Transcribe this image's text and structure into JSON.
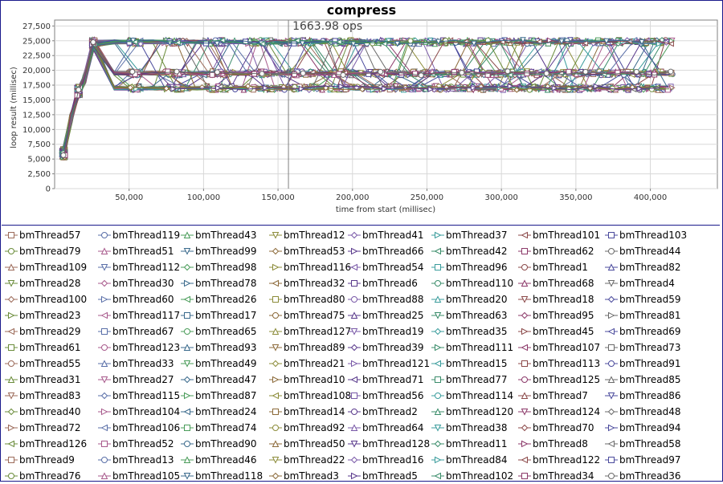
{
  "chart_data": {
    "type": "line",
    "title": "compress",
    "annotation": "1663.98 ops",
    "annotation_x": 157000,
    "xlabel": "time from start (millisec)",
    "ylabel": "loop result (millisec)",
    "xlim": [
      0,
      445000
    ],
    "ylim": [
      0,
      28500
    ],
    "x_ticks": [
      50000,
      100000,
      150000,
      200000,
      250000,
      300000,
      350000,
      400000
    ],
    "x_tick_labels": [
      "50,000",
      "100,000",
      "150,000",
      "200,000",
      "250,000",
      "300,000",
      "350,000",
      "400,000"
    ],
    "y_ticks": [
      0,
      2500,
      5000,
      7500,
      10000,
      12500,
      15000,
      17500,
      20000,
      22500,
      25000,
      27500
    ],
    "y_tick_labels": [
      "0",
      "2,500",
      "5,000",
      "7,500",
      "10,000",
      "12,500",
      "15,000",
      "17,500",
      "20,000",
      "22,500",
      "25,000",
      "27,500"
    ],
    "grid": true,
    "legend_position": "bottom",
    "legend_columns": 7,
    "start_points": [
      [
        6000,
        6000
      ],
      [
        11000,
        11800
      ],
      [
        16000,
        16500
      ],
      [
        20000,
        18500
      ],
      [
        26000,
        24500
      ]
    ],
    "levels": [
      17000,
      19500,
      24800
    ],
    "series_names": [
      "bmThread57",
      "bmThread119",
      "bmThread43",
      "bmThread12",
      "bmThread41",
      "bmThread37",
      "bmThread101",
      "bmThread103",
      "bmThread79",
      "bmThread51",
      "bmThread99",
      "bmThread53",
      "bmThread66",
      "bmThread42",
      "bmThread62",
      "bmThread44",
      "bmThread109",
      "bmThread112",
      "bmThread98",
      "bmThread116",
      "bmThread54",
      "bmThread96",
      "bmThread1",
      "bmThread82",
      "bmThread28",
      "bmThread30",
      "bmThread78",
      "bmThread32",
      "bmThread6",
      "bmThread110",
      "bmThread68",
      "bmThread4",
      "bmThread100",
      "bmThread60",
      "bmThread26",
      "bmThread80",
      "bmThread88",
      "bmThread20",
      "bmThread18",
      "bmThread59",
      "bmThread23",
      "bmThread117",
      "bmThread17",
      "bmThread75",
      "bmThread25",
      "bmThread63",
      "bmThread95",
      "bmThread81",
      "bmThread29",
      "bmThread67",
      "bmThread65",
      "bmThread127",
      "bmThread19",
      "bmThread35",
      "bmThread45",
      "bmThread69",
      "bmThread61",
      "bmThread123",
      "bmThread93",
      "bmThread89",
      "bmThread39",
      "bmThread111",
      "bmThread107",
      "bmThread73",
      "bmThread55",
      "bmThread33",
      "bmThread49",
      "bmThread21",
      "bmThread121",
      "bmThread15",
      "bmThread113",
      "bmThread91",
      "bmThread31",
      "bmThread27",
      "bmThread47",
      "bmThread10",
      "bmThread71",
      "bmThread77",
      "bmThread125",
      "bmThread85",
      "bmThread83",
      "bmThread115",
      "bmThread87",
      "bmThread108",
      "bmThread56",
      "bmThread114",
      "bmThread7",
      "bmThread86",
      "bmThread40",
      "bmThread104",
      "bmThread24",
      "bmThread14",
      "bmThread2",
      "bmThread120",
      "bmThread124",
      "bmThread48",
      "bmThread72",
      "bmThread106",
      "bmThread74",
      "bmThread92",
      "bmThread64",
      "bmThread38",
      "bmThread70",
      "bmThread94",
      "bmThread126",
      "bmThread52",
      "bmThread90",
      "bmThread50",
      "bmThread128",
      "bmThread11",
      "bmThread8",
      "bmThread58",
      "bmThread9",
      "bmThread13",
      "bmThread46",
      "bmThread22",
      "bmThread16",
      "bmThread84",
      "bmThread122",
      "bmThread97",
      "bmThread76",
      "bmThread105",
      "bmThread118",
      "bmThread3",
      "bmThread5",
      "bmThread102",
      "bmThread34",
      "bmThread36"
    ],
    "palette": [
      "#9c6b5a",
      "#5a6fa8",
      "#4a9c5a",
      "#8c8c3a",
      "#7a5aa8",
      "#3a9c9c",
      "#8c4a4a",
      "#4a4a9c",
      "#6a8c3a",
      "#a85a8c",
      "#3a6a8c",
      "#8c6a3a",
      "#5a3a8c",
      "#3a8c6a",
      "#8c3a6a",
      "#6a6a6a"
    ],
    "markers": [
      "square",
      "circle",
      "triangle",
      "triangle-down",
      "diamond",
      "tri-right",
      "tri-left"
    ]
  }
}
